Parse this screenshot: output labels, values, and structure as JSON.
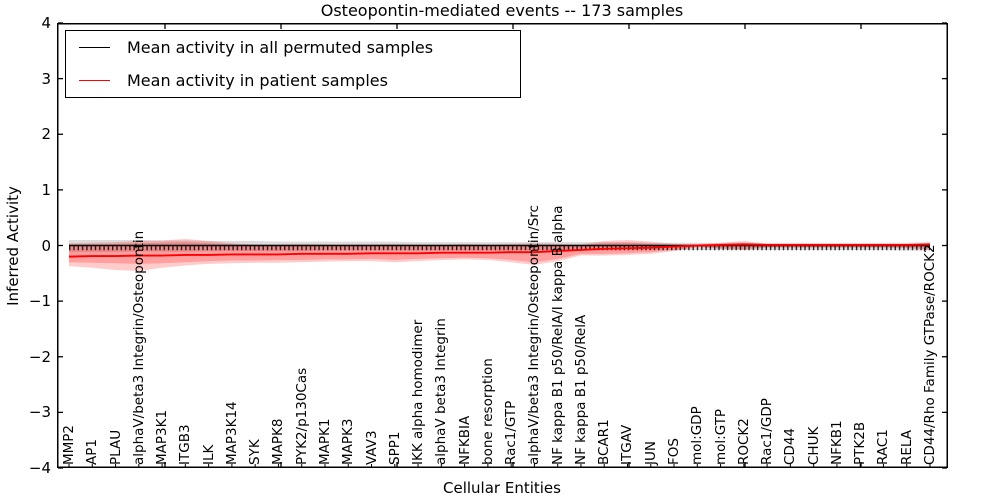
{
  "title": "Osteopontin-mediated events -- 173 samples",
  "axes": {
    "ylabel": "Inferred Activity",
    "xlabel": "Cellular Entities",
    "ytick_labels": [
      "4",
      "3",
      "2",
      "1",
      "0",
      "−1",
      "−2",
      "−3",
      "−4"
    ],
    "ytick_values": [
      4,
      3,
      2,
      1,
      0,
      -1,
      -2,
      -3,
      -4
    ],
    "ylim": [
      -4,
      4
    ]
  },
  "legend": {
    "items": [
      {
        "label": "Mean activity in all permuted samples",
        "color": "#000000"
      },
      {
        "label": "Mean activity in patient samples",
        "color": "#ff0000"
      }
    ],
    "position": "upper left"
  },
  "colors": {
    "permuted_line": "#000000",
    "patient_line": "#ff0000",
    "patient_band": "#ff0000",
    "permuted_band": "#808080",
    "frame": "#000000",
    "background": "#ffffff"
  },
  "chart_data": {
    "type": "line",
    "title": "Osteopontin-mediated events -- 173 samples",
    "xlabel": "Cellular Entities",
    "ylabel": "Inferred Activity",
    "ylim": [
      -4,
      4
    ],
    "grid": false,
    "legend_position": "upper left",
    "x_tick_label_rotation": 90,
    "categories": [
      "MMP2",
      "AP1",
      "PLAU",
      "alphaV/beta3 Integrin/Osteopontin",
      "MAP3K1",
      "ITGB3",
      "ILK",
      "MAP3K14",
      "SYK",
      "MAPK8",
      "PYK2/p130Cas",
      "MAPK1",
      "MAPK3",
      "VAV3",
      "SPP1",
      "IKK alpha homodimer",
      "alphaV beta3 Integrin",
      "NFKBIA",
      "bone resorption",
      "Rac1/GTP",
      "alphaV/beta3 Integrin/Osteopontin/Src",
      "NF kappa B1 p50/RelA/I kappa B alpha",
      "NF kappa B1 p50/RelA",
      "BCAR1",
      "ITGAV",
      "JUN",
      "FOS",
      "mol:GDP",
      "mol:GTP",
      "ROCK2",
      "Rac1/GDP",
      "CD44",
      "CHUK",
      "NFKB1",
      "PTK2B",
      "RAC1",
      "RELA",
      "CD44/Rho Family GTPase/ROCK2"
    ],
    "series": [
      {
        "name": "Mean activity in all permuted samples",
        "color": "#000000",
        "line_style": "solid with dotted zero overlay",
        "values": [
          0.0,
          0.0,
          0.0,
          0.0,
          0.0,
          0.0,
          0.0,
          0.0,
          0.0,
          0.0,
          0.0,
          0.0,
          0.0,
          0.0,
          0.0,
          0.0,
          0.0,
          0.0,
          0.0,
          0.0,
          0.0,
          0.0,
          0.0,
          0.0,
          0.0,
          0.0,
          0.0,
          0.0,
          0.0,
          0.0,
          0.0,
          0.0,
          0.0,
          0.0,
          0.0,
          0.0,
          0.0,
          0.0
        ],
        "band_upper": [
          0.1,
          0.1,
          0.1,
          0.1,
          0.09,
          0.09,
          0.08,
          0.08,
          0.08,
          0.07,
          0.07,
          0.07,
          0.07,
          0.07,
          0.07,
          0.06,
          0.06,
          0.06,
          0.06,
          0.06,
          0.06,
          0.06,
          0.06,
          0.06,
          0.06,
          0.05,
          0.05,
          0.05,
          0.05,
          0.05,
          0.05,
          0.05,
          0.05,
          0.05,
          0.05,
          0.05,
          0.05,
          0.06
        ],
        "band_lower": [
          -0.12,
          -0.12,
          -0.12,
          -0.11,
          -0.11,
          -0.11,
          -0.1,
          -0.1,
          -0.1,
          -0.1,
          -0.1,
          -0.09,
          -0.09,
          -0.09,
          -0.09,
          -0.09,
          -0.09,
          -0.09,
          -0.09,
          -0.09,
          -0.09,
          -0.09,
          -0.08,
          -0.08,
          -0.08,
          -0.08,
          -0.08,
          -0.08,
          -0.08,
          -0.08,
          -0.08,
          -0.08,
          -0.08,
          -0.08,
          -0.08,
          -0.08,
          -0.09,
          -0.09
        ]
      },
      {
        "name": "Mean activity in patient samples",
        "color": "#ff0000",
        "line_style": "solid",
        "values": [
          -0.2,
          -0.19,
          -0.19,
          -0.18,
          -0.18,
          -0.17,
          -0.17,
          -0.16,
          -0.16,
          -0.16,
          -0.15,
          -0.15,
          -0.15,
          -0.14,
          -0.14,
          -0.14,
          -0.13,
          -0.13,
          -0.13,
          -0.12,
          -0.12,
          -0.1,
          -0.08,
          -0.06,
          -0.05,
          -0.04,
          -0.02,
          0.0,
          0.01,
          0.02,
          0.01,
          0.01,
          0.01,
          0.01,
          0.01,
          0.01,
          0.01,
          0.02
        ],
        "band_upper": [
          0.04,
          0.05,
          0.06,
          0.08,
          0.09,
          0.12,
          0.08,
          0.04,
          0.02,
          0.02,
          0.03,
          0.02,
          0.02,
          0.02,
          0.03,
          0.02,
          0.02,
          0.03,
          0.02,
          0.03,
          0.04,
          0.03,
          0.02,
          0.08,
          0.1,
          0.07,
          0.03,
          0.02,
          0.05,
          0.08,
          0.03,
          0.03,
          0.03,
          0.03,
          0.03,
          0.03,
          0.03,
          0.05
        ],
        "band_lower": [
          -0.37,
          -0.4,
          -0.44,
          -0.46,
          -0.4,
          -0.36,
          -0.33,
          -0.32,
          -0.31,
          -0.31,
          -0.3,
          -0.29,
          -0.28,
          -0.28,
          -0.3,
          -0.28,
          -0.26,
          -0.25,
          -0.26,
          -0.3,
          -0.35,
          -0.28,
          -0.18,
          -0.18,
          -0.17,
          -0.15,
          -0.1,
          -0.03,
          -0.06,
          -0.08,
          -0.04,
          -0.04,
          -0.04,
          -0.04,
          -0.04,
          -0.04,
          -0.05,
          -0.08
        ],
        "band_inner_upper": [
          0.02,
          0.02,
          0.03,
          0.04,
          0.05,
          0.06,
          0.04,
          0.02,
          0.01,
          0.01,
          0.01,
          0.01,
          0.01,
          0.01,
          0.01,
          0.01,
          0.01,
          0.01,
          0.01,
          0.01,
          0.02,
          0.01,
          0.01,
          0.04,
          0.05,
          0.03,
          0.01,
          0.01,
          0.03,
          0.04,
          0.02,
          0.02,
          0.02,
          0.02,
          0.02,
          0.02,
          0.02,
          0.03
        ],
        "band_inner_lower": [
          -0.3,
          -0.31,
          -0.32,
          -0.33,
          -0.32,
          -0.3,
          -0.28,
          -0.27,
          -0.27,
          -0.26,
          -0.26,
          -0.25,
          -0.25,
          -0.24,
          -0.26,
          -0.24,
          -0.23,
          -0.22,
          -0.23,
          -0.26,
          -0.3,
          -0.24,
          -0.15,
          -0.15,
          -0.14,
          -0.12,
          -0.08,
          -0.02,
          -0.05,
          -0.06,
          -0.03,
          -0.03,
          -0.03,
          -0.03,
          -0.03,
          -0.03,
          -0.04,
          -0.06
        ]
      }
    ]
  }
}
